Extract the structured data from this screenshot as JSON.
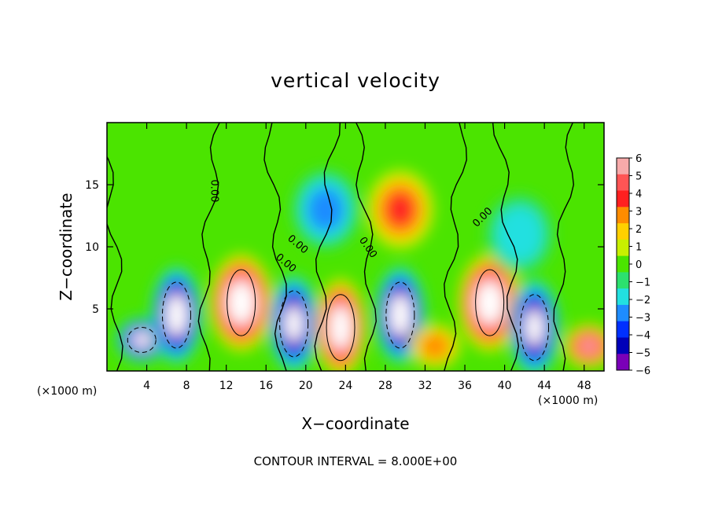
{
  "chart_data": {
    "type": "heatmap",
    "title": "vertical velocity",
    "xlabel": "X−coordinate",
    "ylabel": "Z−coordinate",
    "x_unit": "(×1000 m)",
    "z_unit": "(×1000 m)",
    "xlim": [
      0,
      50
    ],
    "ylim": [
      0,
      20
    ],
    "x_ticks": [
      4,
      8,
      12,
      16,
      20,
      24,
      28,
      32,
      36,
      40,
      44,
      48
    ],
    "x_tick_labels": [
      "4",
      "8",
      "12",
      "16",
      "20",
      "24",
      "28",
      "32",
      "36",
      "40",
      "44",
      "48"
    ],
    "y_ticks": [
      5,
      10,
      15
    ],
    "y_tick_labels": [
      "5",
      "10",
      "15"
    ],
    "colorbar": {
      "levels": [
        6,
        5,
        4,
        3,
        2,
        1,
        0,
        -1,
        -2,
        -3,
        -4,
        -5,
        -6
      ],
      "labels": [
        "6",
        "5",
        "4",
        "3",
        "2",
        "1",
        "0",
        "−1",
        "−2",
        "−3",
        "−4",
        "−5",
        "−6"
      ],
      "colors": [
        "#f7aaaa",
        "#ff5555",
        "#ff2020",
        "#ff8c00",
        "#ffd000",
        "#c8f000",
        "#4be400",
        "#2ce06e",
        "#22e0e0",
        "#1e8cff",
        "#0030ff",
        "#0000b8",
        "#7a00b8"
      ]
    },
    "background_value": 0,
    "cells": [
      {
        "x": 3.5,
        "z": 2.5,
        "w": -8
      },
      {
        "x": 7.0,
        "z": 4.5,
        "w": -9
      },
      {
        "x": 13.5,
        "z": 5.5,
        "w": 14
      },
      {
        "x": 18.8,
        "z": 3.8,
        "w": -8
      },
      {
        "x": 23.5,
        "z": 3.5,
        "w": 9
      },
      {
        "x": 29.5,
        "z": 4.5,
        "w": -9
      },
      {
        "x": 33.0,
        "z": 2.0,
        "w": 3
      },
      {
        "x": 38.5,
        "z": 5.5,
        "w": 12
      },
      {
        "x": 43.0,
        "z": 3.5,
        "w": -8
      },
      {
        "x": 48.5,
        "z": 2.0,
        "w": 6
      },
      {
        "x": 29.5,
        "z": 13.0,
        "w": 3.5
      },
      {
        "x": 22.0,
        "z": 13.0,
        "w": -2.5
      },
      {
        "x": 41.5,
        "z": 11.0,
        "w": -2
      }
    ],
    "contour_labels": [
      "0.00",
      "0.00",
      "0.00",
      "0.00",
      "0.00"
    ],
    "contour_interval": "CONTOUR INTERVAL = 8.000E+00"
  }
}
